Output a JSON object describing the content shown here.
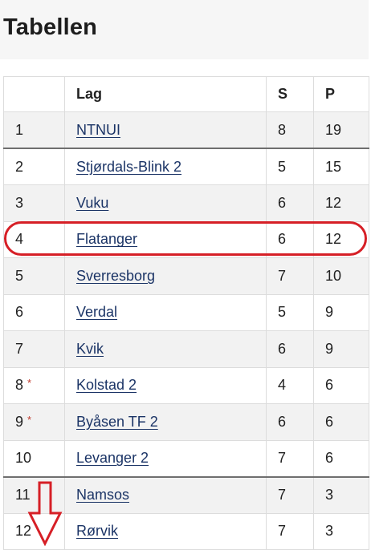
{
  "page": {
    "title": "Tabellen"
  },
  "table": {
    "headers": {
      "rank": "",
      "team": "Lag",
      "s": "S",
      "p": "P"
    },
    "rows": [
      {
        "rank": "1",
        "team": "NTNUI",
        "s": "8",
        "p": "19",
        "marker": ""
      },
      {
        "rank": "2",
        "team": "Stjørdals-Blink 2",
        "s": "5",
        "p": "15",
        "marker": ""
      },
      {
        "rank": "3",
        "team": "Vuku",
        "s": "6",
        "p": "12",
        "marker": ""
      },
      {
        "rank": "4",
        "team": "Flatanger",
        "s": "6",
        "p": "12",
        "marker": ""
      },
      {
        "rank": "5",
        "team": "Sverresborg",
        "s": "7",
        "p": "10",
        "marker": ""
      },
      {
        "rank": "6",
        "team": "Verdal",
        "s": "5",
        "p": "9",
        "marker": ""
      },
      {
        "rank": "7",
        "team": "Kvik",
        "s": "6",
        "p": "9",
        "marker": ""
      },
      {
        "rank": "8",
        "team": "Kolstad 2",
        "s": "4",
        "p": "6",
        "marker": "*"
      },
      {
        "rank": "9",
        "team": "Byåsen TF 2",
        "s": "6",
        "p": "6",
        "marker": "*"
      },
      {
        "rank": "10",
        "team": "Levanger 2",
        "s": "7",
        "p": "6",
        "marker": ""
      },
      {
        "rank": "11",
        "team": "Namsos",
        "s": "7",
        "p": "3",
        "marker": ""
      },
      {
        "rank": "12",
        "team": "Rørvik",
        "s": "7",
        "p": "3",
        "marker": ""
      }
    ]
  },
  "annotations": {
    "highlight_team": "Flatanger",
    "highlight_color": "#d61f26",
    "arrow_direction": "down",
    "arrow_color": "#d61f26"
  },
  "colors": {
    "link": "#1b3466",
    "alt_row": "#f2f2f2",
    "asterisk": "#c0392b"
  }
}
